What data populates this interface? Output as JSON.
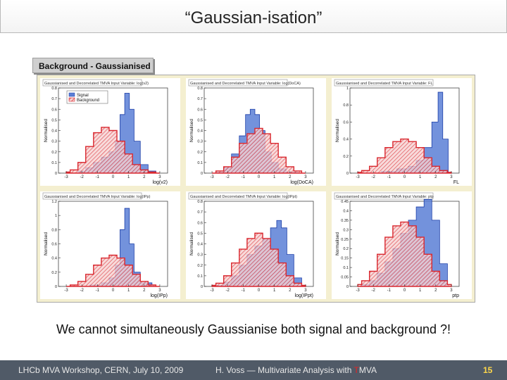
{
  "slide": {
    "title": "“Gaussian-isation”",
    "panel_label": "Background - Gaussianised",
    "caption": "We cannot simultaneously Gaussianise both signal and background ?!"
  },
  "footer": {
    "left": "LHCb MVA Workshop, CERN, July 10, 2009",
    "center_prefix": "H. Voss — Multivariate Analysis with ",
    "center_t": "T",
    "center_suffix": "MVA",
    "page": "15"
  },
  "colors": {
    "signal": "#5b7fd6",
    "background": "#d9272e",
    "figure_bg": "#f4efd0",
    "footer_bg": "#505a67"
  },
  "chart_data": [
    {
      "type": "histogram",
      "title": "Gaussianised and Decorrelated TMVA Input Variable: log(v2)",
      "xlabel": "log(v2)",
      "ylabel": "Normalised",
      "xticks": [
        "-3",
        "-2",
        "-1",
        "0",
        "1",
        "2",
        "3"
      ],
      "yticks": [
        "0",
        "0.1",
        "0.2",
        "0.3",
        "0.4",
        "0.5",
        "0.6",
        "0.7",
        "0.8"
      ],
      "legend": [
        "Signal",
        "Background"
      ],
      "series": [
        {
          "name": "Signal",
          "x": [
            -3,
            -2.5,
            -2,
            -1.5,
            -1,
            -0.5,
            0,
            0.3,
            0.6,
            0.9,
            1.2,
            1.5,
            2,
            2.5,
            3
          ],
          "values": [
            0,
            0,
            0.02,
            0.05,
            0.1,
            0.15,
            0.2,
            0.3,
            0.55,
            0.75,
            0.6,
            0.3,
            0.08,
            0.02,
            0
          ]
        },
        {
          "name": "Background",
          "x": [
            -3,
            -2.5,
            -2,
            -1.5,
            -1,
            -0.5,
            0,
            0.5,
            1,
            1.5,
            2,
            2.5,
            3
          ],
          "values": [
            0.01,
            0.03,
            0.1,
            0.25,
            0.38,
            0.43,
            0.4,
            0.3,
            0.18,
            0.08,
            0.03,
            0.01,
            0
          ]
        }
      ]
    },
    {
      "type": "histogram",
      "title": "Gaussianised and Decorrelated TMVA Input Variable: log(DoCA)",
      "xlabel": "log(DoCA)",
      "ylabel": "Normalised",
      "xticks": [
        "-3",
        "-2",
        "-1",
        "0",
        "1",
        "2",
        "3"
      ],
      "yticks": [
        "0",
        "0.1",
        "0.2",
        "0.3",
        "0.4",
        "0.5",
        "0.6",
        "0.7",
        "0.8"
      ],
      "series": [
        {
          "name": "Signal",
          "x": [
            -3,
            -2.5,
            -2,
            -1.5,
            -1,
            -0.7,
            -0.4,
            -0.1,
            0.2,
            0.6,
            1,
            1.5,
            2,
            3
          ],
          "values": [
            0,
            0.01,
            0.05,
            0.18,
            0.35,
            0.55,
            0.6,
            0.55,
            0.4,
            0.2,
            0.1,
            0.04,
            0.01,
            0
          ]
        },
        {
          "name": "Background",
          "x": [
            -3,
            -2.5,
            -2,
            -1.5,
            -1,
            -0.5,
            0,
            0.5,
            1,
            1.5,
            2,
            2.5,
            3
          ],
          "values": [
            0,
            0.02,
            0.06,
            0.15,
            0.28,
            0.37,
            0.42,
            0.37,
            0.28,
            0.15,
            0.06,
            0.02,
            0
          ]
        }
      ]
    },
    {
      "type": "histogram",
      "title": "Gaussianised and Decorrelated TMVA Input Variable: FL",
      "xlabel": "FL",
      "ylabel": "Normalised",
      "xticks": [
        "-3",
        "-2",
        "-1",
        "0",
        "1",
        "2",
        "3"
      ],
      "yticks": [
        "0",
        "0.2",
        "0.4",
        "0.6",
        "0.8",
        "1"
      ],
      "series": [
        {
          "name": "Signal",
          "x": [
            -3,
            -2,
            -1,
            0,
            0.5,
            1,
            1.5,
            2,
            2.3,
            2.6,
            3
          ],
          "values": [
            0,
            0,
            0.02,
            0.05,
            0.08,
            0.15,
            0.3,
            0.6,
            0.95,
            0.4,
            0
          ]
        },
        {
          "name": "Background",
          "x": [
            -3,
            -2.5,
            -2,
            -1.5,
            -1,
            -0.5,
            0,
            0.5,
            1,
            1.5,
            2,
            2.5,
            3
          ],
          "values": [
            0.01,
            0.03,
            0.08,
            0.18,
            0.3,
            0.37,
            0.4,
            0.37,
            0.3,
            0.18,
            0.08,
            0.03,
            0.01
          ]
        }
      ]
    },
    {
      "type": "histogram",
      "title": "Gaussianised and Decorrelated TMVA Input Variable: log(IPp)",
      "xlabel": "log(IPp)",
      "ylabel": "Normalised",
      "xticks": [
        "-3",
        "-2",
        "-1",
        "0",
        "1",
        "2",
        "3"
      ],
      "yticks": [
        "0",
        "0.2",
        "0.4",
        "0.6",
        "0.8",
        "1",
        "1.2"
      ],
      "series": [
        {
          "name": "Signal",
          "x": [
            -3,
            -2,
            -1,
            -0.5,
            0,
            0.3,
            0.6,
            0.9,
            1.2,
            1.5,
            2,
            3
          ],
          "values": [
            0,
            0,
            0.02,
            0.05,
            0.12,
            0.3,
            0.8,
            1.1,
            0.6,
            0.2,
            0.05,
            0
          ]
        },
        {
          "name": "Background",
          "x": [
            -3,
            -2.5,
            -2,
            -1.5,
            -1,
            -0.5,
            0,
            0.5,
            1,
            1.5,
            2,
            2.5,
            3
          ],
          "values": [
            0,
            0.02,
            0.07,
            0.17,
            0.3,
            0.4,
            0.44,
            0.4,
            0.3,
            0.17,
            0.07,
            0.02,
            0
          ]
        }
      ]
    },
    {
      "type": "histogram",
      "title": "Gaussianised and Decorrelated TMVA Input Variable: log(IPpt)",
      "xlabel": "log(IPpt)",
      "ylabel": "Normalised",
      "xticks": [
        "-3",
        "-2",
        "-1",
        "0",
        "1",
        "2",
        "3"
      ],
      "yticks": [
        "0",
        "0.1",
        "0.2",
        "0.3",
        "0.4",
        "0.5",
        "0.6",
        "0.7",
        "0.8"
      ],
      "series": [
        {
          "name": "Signal",
          "x": [
            -3,
            -2.5,
            -2,
            -1.5,
            -1,
            -0.5,
            0,
            0.5,
            1,
            1.3,
            1.6,
            2,
            2.5,
            3
          ],
          "values": [
            0,
            0.01,
            0.04,
            0.1,
            0.2,
            0.3,
            0.38,
            0.45,
            0.55,
            0.62,
            0.55,
            0.3,
            0.08,
            0
          ]
        },
        {
          "name": "Background",
          "x": [
            -3,
            -2.5,
            -2,
            -1.5,
            -1,
            -0.5,
            0,
            0.5,
            1,
            1.5,
            2,
            2.5,
            3
          ],
          "values": [
            0.01,
            0.03,
            0.1,
            0.22,
            0.35,
            0.45,
            0.5,
            0.45,
            0.35,
            0.22,
            0.1,
            0.03,
            0.01
          ]
        }
      ]
    },
    {
      "type": "histogram",
      "title": "Gaussianised and Decorrelated TMVA Input Variable: ptp",
      "xlabel": "ptp",
      "ylabel": "Normalised",
      "xticks": [
        "-3",
        "-2",
        "-1",
        "0",
        "1",
        "2",
        "3"
      ],
      "yticks": [
        "0",
        "0.05",
        "0.1",
        "0.15",
        "0.2",
        "0.25",
        "0.3",
        "0.35",
        "0.4",
        "0.45"
      ],
      "series": [
        {
          "name": "Signal",
          "x": [
            -3,
            -2.5,
            -2,
            -1.5,
            -1,
            -0.5,
            0,
            0.5,
            1,
            1.5,
            2,
            2.5,
            3
          ],
          "values": [
            0,
            0.01,
            0.03,
            0.07,
            0.13,
            0.2,
            0.28,
            0.35,
            0.42,
            0.46,
            0.35,
            0.12,
            0
          ]
        },
        {
          "name": "Background",
          "x": [
            -3,
            -2.5,
            -2,
            -1.5,
            -1,
            -0.5,
            0,
            0.5,
            1,
            1.5,
            2,
            2.5,
            3
          ],
          "values": [
            0.01,
            0.03,
            0.08,
            0.17,
            0.26,
            0.32,
            0.34,
            0.32,
            0.26,
            0.17,
            0.08,
            0.03,
            0.01
          ]
        }
      ]
    }
  ]
}
